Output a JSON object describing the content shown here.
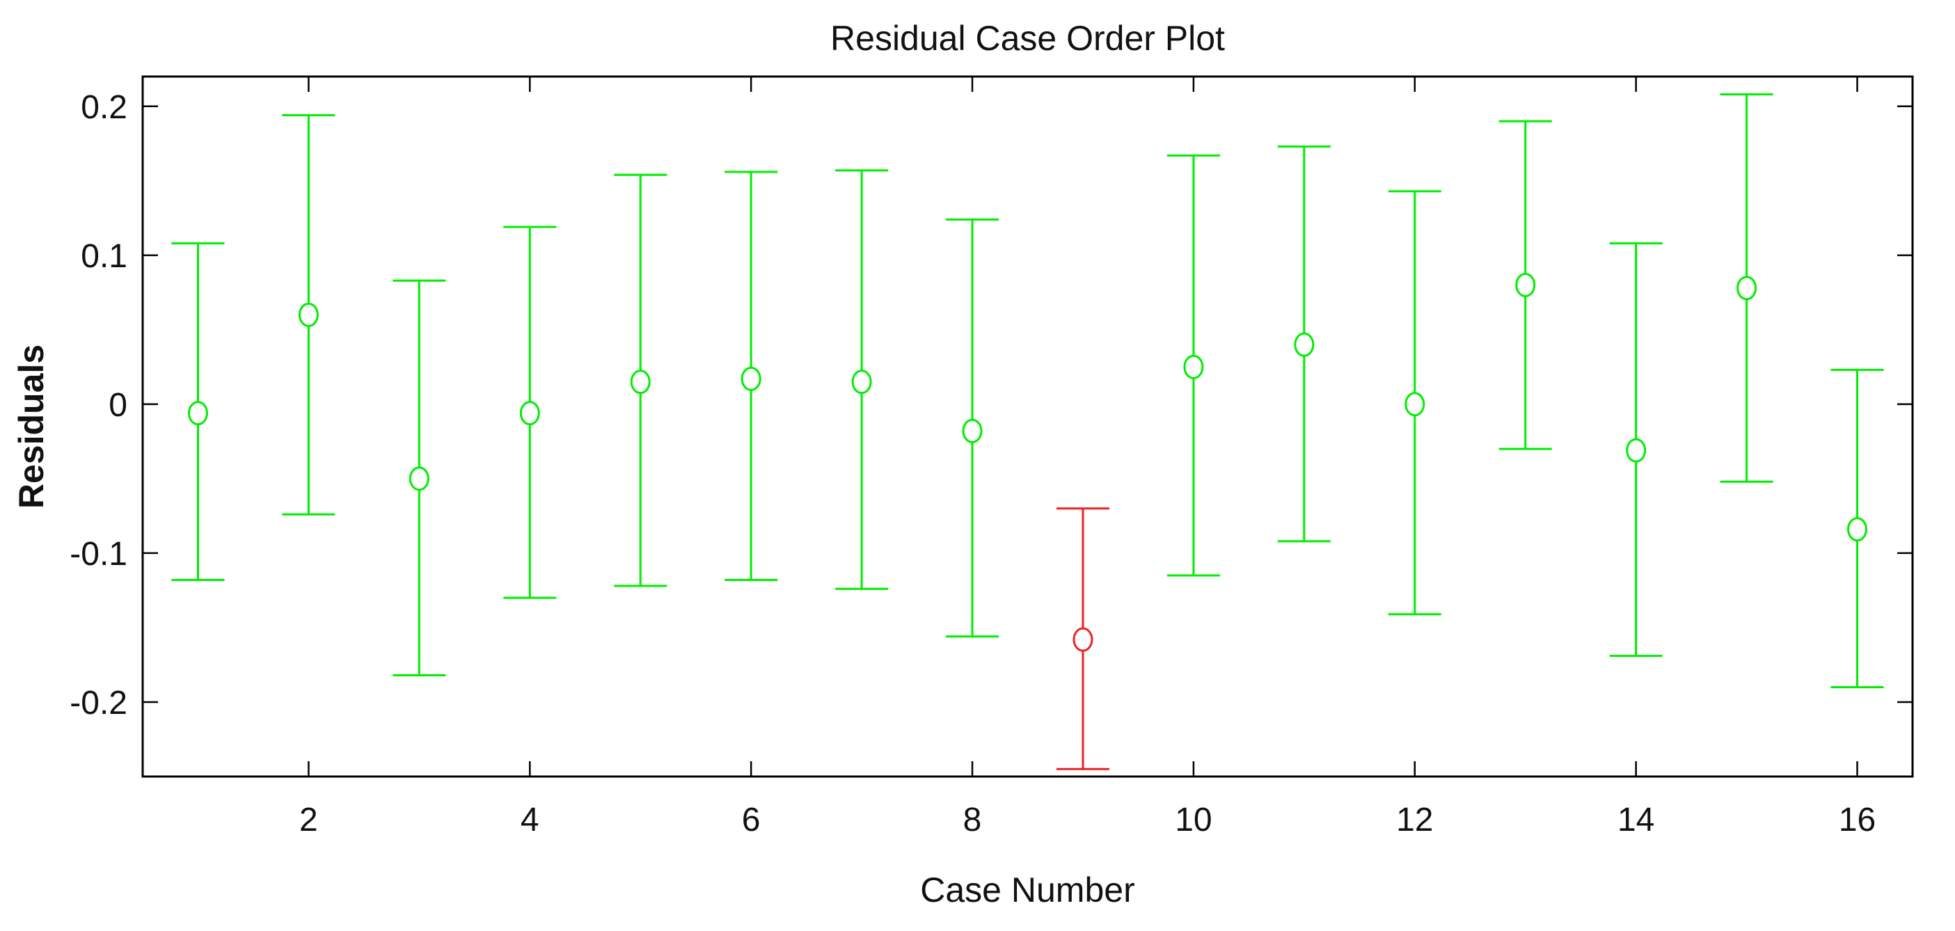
{
  "chart_data": {
    "type": "scatter",
    "title": "Residual Case Order Plot",
    "xlabel": "Case Number",
    "ylabel": "Residuals",
    "xlim": [
      0.5,
      16.5
    ],
    "ylim": [
      -0.25,
      0.22
    ],
    "xticks": [
      "2",
      "4",
      "6",
      "8",
      "10",
      "12",
      "14",
      "16"
    ],
    "yticks": [
      "-0.2",
      "-0.1",
      "0",
      "0.1",
      "0.2"
    ],
    "grid": false,
    "legend": "none",
    "colors": {
      "normal": "#00ee00",
      "outlier": "#ee2020"
    },
    "series": [
      {
        "x": [
          1,
          2,
          3,
          4,
          5,
          6,
          7,
          8,
          9,
          10,
          11,
          12,
          13,
          14,
          15,
          16
        ],
        "residual": [
          -0.006,
          0.06,
          -0.05,
          -0.006,
          0.015,
          0.017,
          0.015,
          -0.018,
          -0.158,
          0.025,
          0.04,
          0.0,
          0.08,
          -0.031,
          0.078,
          -0.084
        ],
        "ci_low": [
          -0.118,
          -0.074,
          -0.182,
          -0.13,
          -0.122,
          -0.118,
          -0.124,
          -0.156,
          -0.245,
          -0.115,
          -0.092,
          -0.141,
          -0.03,
          -0.169,
          -0.052,
          -0.19
        ],
        "ci_high": [
          0.108,
          0.194,
          0.083,
          0.119,
          0.154,
          0.156,
          0.157,
          0.124,
          -0.07,
          0.167,
          0.173,
          0.143,
          0.19,
          0.108,
          0.208,
          0.023
        ],
        "outlier": [
          false,
          false,
          false,
          false,
          false,
          false,
          false,
          false,
          true,
          false,
          false,
          false,
          false,
          false,
          false,
          false
        ]
      }
    ]
  }
}
